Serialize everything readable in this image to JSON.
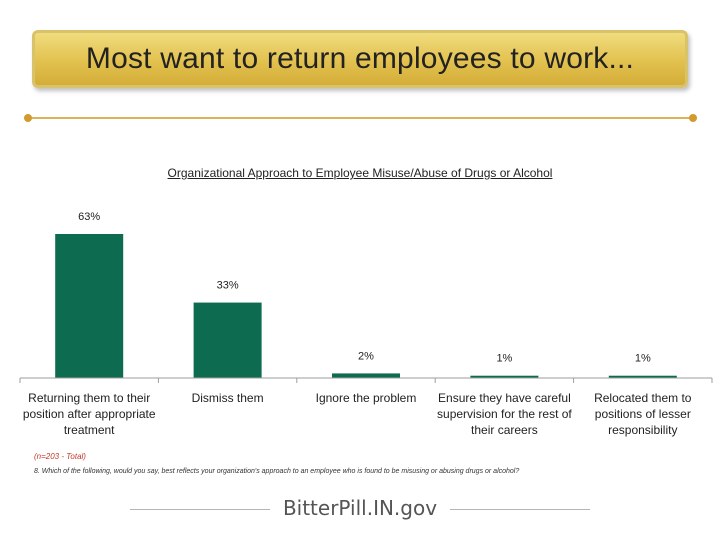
{
  "header": {
    "title": "Most want to return employees to work..."
  },
  "chart_data": {
    "type": "bar",
    "title": "Organizational Approach to Employee Misuse/Abuse of Drugs or Alcohol",
    "categories": [
      "Returning them to their position after appropriate treatment",
      "Dismiss them",
      "Ignore the problem",
      "Ensure they have careful supervision for the rest of their careers",
      "Relocated them to positions of lesser responsibility"
    ],
    "values": [
      63,
      33,
      2,
      1,
      1
    ],
    "value_labels": [
      "63%",
      "33%",
      "2%",
      "1%",
      "1%"
    ],
    "ylim": [
      0,
      63
    ],
    "bar_color": "#0d6b50",
    "grid": false
  },
  "footnotes": {
    "sample": "(n=203 - Total)",
    "question": "8. Which of the following, would you say, best reflects your organization's approach to an employee who is found to be misusing or abusing drugs or alcohol?"
  },
  "logo_text": "BitterPill.IN.gov"
}
